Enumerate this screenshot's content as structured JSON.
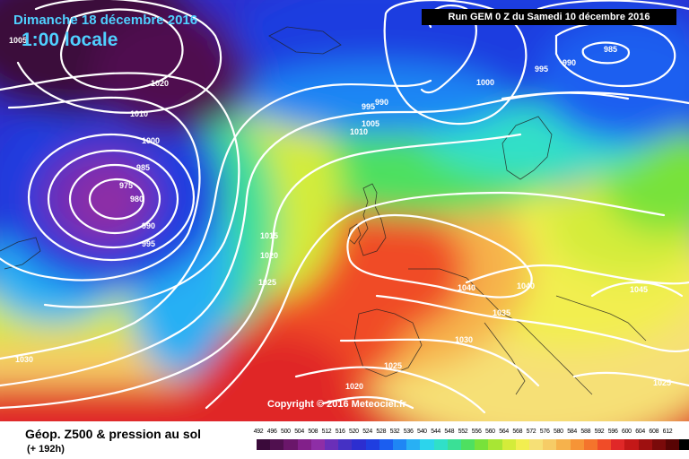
{
  "header": {
    "date": "Dimanche 18 décembre 2016",
    "time": "1:00 locale",
    "run_info": "Run GEM 0 Z du Samedi 10 décembre 2016"
  },
  "copyright": "Copyright © 2016 Meteociel.fr",
  "footer": {
    "product": "Géop. Z500 & pression au sol",
    "forecast": "(+ 192h)"
  },
  "legend": {
    "ticks": [
      "492",
      "496",
      "500",
      "504",
      "508",
      "512",
      "516",
      "520",
      "524",
      "528",
      "532",
      "536",
      "540",
      "544",
      "548",
      "552",
      "556",
      "560",
      "564",
      "568",
      "572",
      "576",
      "580",
      "584",
      "588",
      "592",
      "596",
      "600",
      "604",
      "608",
      "612"
    ],
    "colors": [
      "#3a0a3a",
      "#50104f",
      "#6a166a",
      "#82208a",
      "#8e2ea6",
      "#6a2fb8",
      "#4531c4",
      "#2c2ed0",
      "#1f3ee0",
      "#1b5ef0",
      "#1f86f4",
      "#28b0f4",
      "#2cd4ec",
      "#30e0c8",
      "#3ae096",
      "#4ee060",
      "#78e23a",
      "#a8e634",
      "#d4ec3a",
      "#f2ee50",
      "#f6e076",
      "#f6cc66",
      "#f6b24c",
      "#f69436",
      "#f4742c",
      "#f04c28",
      "#e02828",
      "#c41818",
      "#9e1010",
      "#7a0a0a",
      "#580404",
      "#000000"
    ]
  },
  "isobars": [
    {
      "value": "1005",
      "name": "isobar-1005-topleft"
    },
    {
      "value": "1020",
      "name": "isobar-1020-north"
    },
    {
      "value": "1010",
      "name": "isobar-1010-north"
    },
    {
      "value": "1000",
      "name": "isobar-1000-west"
    },
    {
      "value": "985",
      "name": "isobar-985-low"
    },
    {
      "value": "975",
      "name": "isobar-975-low"
    },
    {
      "value": "980",
      "name": "isobar-980-low"
    },
    {
      "value": "990",
      "name": "isobar-990-low"
    },
    {
      "value": "995",
      "name": "isobar-995-low"
    },
    {
      "value": "1015",
      "name": "isobar-1015-atlantic"
    },
    {
      "value": "1020",
      "name": "isobar-1020-atlantic"
    },
    {
      "value": "1025",
      "name": "isobar-1025-atlantic"
    },
    {
      "value": "1030",
      "name": "isobar-1030-southwest"
    },
    {
      "value": "995",
      "name": "isobar-995-north"
    },
    {
      "value": "990",
      "name": "isobar-990-north"
    },
    {
      "value": "1005",
      "name": "isobar-1005-north"
    },
    {
      "value": "1010",
      "name": "isobar-1010-northsea"
    },
    {
      "value": "1000",
      "name": "isobar-1000-scandinavia"
    },
    {
      "value": "995",
      "name": "isobar-995-northeast"
    },
    {
      "value": "990",
      "name": "isobar-990-northeast"
    },
    {
      "value": "985",
      "name": "isobar-985-northeast"
    },
    {
      "value": "1040",
      "name": "isobar-1040-centre"
    },
    {
      "value": "1040",
      "name": "isobar-1040-east"
    },
    {
      "value": "1035",
      "name": "isobar-1035-alps"
    },
    {
      "value": "1030",
      "name": "isobar-1030-mediterranean"
    },
    {
      "value": "1025",
      "name": "isobar-1025-iberia"
    },
    {
      "value": "1020",
      "name": "isobar-1020-africa"
    },
    {
      "value": "1045",
      "name": "isobar-1045-russia"
    },
    {
      "value": "1025",
      "name": "isobar-1025-southeast"
    }
  ]
}
